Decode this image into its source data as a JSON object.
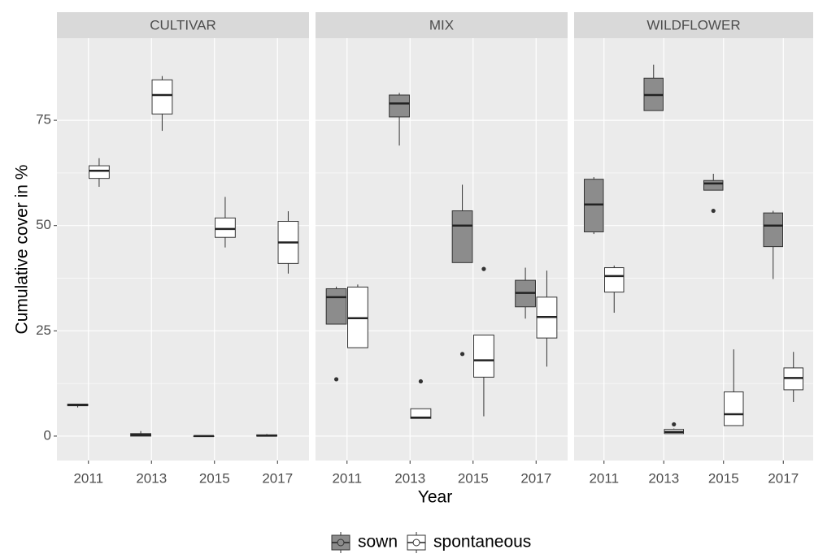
{
  "chart_data": {
    "type": "boxplot",
    "y_label": "Cumulative cover in %",
    "x_label": "Year",
    "ylim": [
      -5.8,
      94.5
    ],
    "yticks": [
      0,
      25,
      50,
      75
    ],
    "grid": true,
    "categories": [
      "2011",
      "2013",
      "2015",
      "2017"
    ],
    "series": [
      {
        "name": "sown",
        "color": "#8c8c8c"
      },
      {
        "name": "spontaneous",
        "color": "#ffffff"
      }
    ],
    "facets": [
      {
        "title": "CULTIVAR",
        "boxes": [
          [
            {
              "min": 6.8,
              "q1": 7.2,
              "median": 7.4,
              "q3": 7.6,
              "max": 7.7,
              "outliers": []
            },
            {
              "min": 0,
              "q1": 0,
              "median": 0.3,
              "q3": 0.6,
              "max": 1.2,
              "outliers": []
            },
            {
              "min": 0,
              "q1": 0,
              "median": 0,
              "q3": 0,
              "max": 0,
              "outliers": []
            },
            {
              "min": 0,
              "q1": 0,
              "median": 0.1,
              "q3": 0.3,
              "max": 0.5,
              "outliers": []
            }
          ],
          [
            {
              "min": 59.2,
              "q1": 61.2,
              "median": 63,
              "q3": 64.2,
              "max": 66,
              "outliers": []
            },
            {
              "min": 72.5,
              "q1": 76.5,
              "median": 81,
              "q3": 84.6,
              "max": 85.5,
              "outliers": []
            },
            {
              "min": 44.8,
              "q1": 47.2,
              "median": 49.2,
              "q3": 51.8,
              "max": 56.8,
              "outliers": []
            },
            {
              "min": 38.6,
              "q1": 41,
              "median": 46,
              "q3": 51,
              "max": 53.4,
              "outliers": []
            }
          ]
        ]
      },
      {
        "title": "MIX",
        "boxes": [
          [
            {
              "min": 26.6,
              "q1": 26.6,
              "median": 33,
              "q3": 35,
              "max": 35.5,
              "outliers": [
                13.5
              ]
            },
            {
              "min": 69,
              "q1": 75.8,
              "median": 79,
              "q3": 81,
              "max": 81.5,
              "outliers": []
            },
            {
              "min": 41.2,
              "q1": 41.2,
              "median": 50,
              "q3": 53.5,
              "max": 59.7,
              "outliers": [
                19.5
              ]
            },
            {
              "min": 27.9,
              "q1": 30.7,
              "median": 34,
              "q3": 37,
              "max": 40,
              "outliers": []
            }
          ],
          [
            {
              "min": 21,
              "q1": 21,
              "median": 28,
              "q3": 35.4,
              "max": 36,
              "outliers": []
            },
            {
              "min": 4.2,
              "q1": 4.2,
              "median": 4.4,
              "q3": 6.5,
              "max": 6.5,
              "outliers": [
                13
              ]
            },
            {
              "min": 4.7,
              "q1": 14,
              "median": 18,
              "q3": 24,
              "max": 24,
              "outliers": [
                39.7
              ]
            },
            {
              "min": 16.5,
              "q1": 23.3,
              "median": 28.3,
              "q3": 33,
              "max": 39.3,
              "outliers": []
            }
          ]
        ]
      },
      {
        "title": "WILDFLOWER",
        "boxes": [
          [
            {
              "min": 48,
              "q1": 48.5,
              "median": 55,
              "q3": 61,
              "max": 61.5,
              "outliers": []
            },
            {
              "min": 77.3,
              "q1": 77.3,
              "median": 81,
              "q3": 85,
              "max": 88.2,
              "outliers": []
            },
            {
              "min": 58.4,
              "q1": 58.4,
              "median": 60,
              "q3": 60.7,
              "max": 62.3,
              "outliers": [
                53.5
              ]
            },
            {
              "min": 37.3,
              "q1": 45,
              "median": 50,
              "q3": 53,
              "max": 53.5,
              "outliers": []
            }
          ],
          [
            {
              "min": 29.3,
              "q1": 34.2,
              "median": 38,
              "q3": 40,
              "max": 40.5,
              "outliers": []
            },
            {
              "min": 0.6,
              "q1": 0.6,
              "median": 1,
              "q3": 1.6,
              "max": 1.8,
              "outliers": [
                2.8
              ]
            },
            {
              "min": 2.5,
              "q1": 2.5,
              "median": 5.2,
              "q3": 10.5,
              "max": 20.6,
              "outliers": []
            },
            {
              "min": 8.1,
              "q1": 11,
              "median": 13.8,
              "q3": 16.2,
              "max": 20,
              "outliers": []
            }
          ]
        ]
      }
    ]
  }
}
